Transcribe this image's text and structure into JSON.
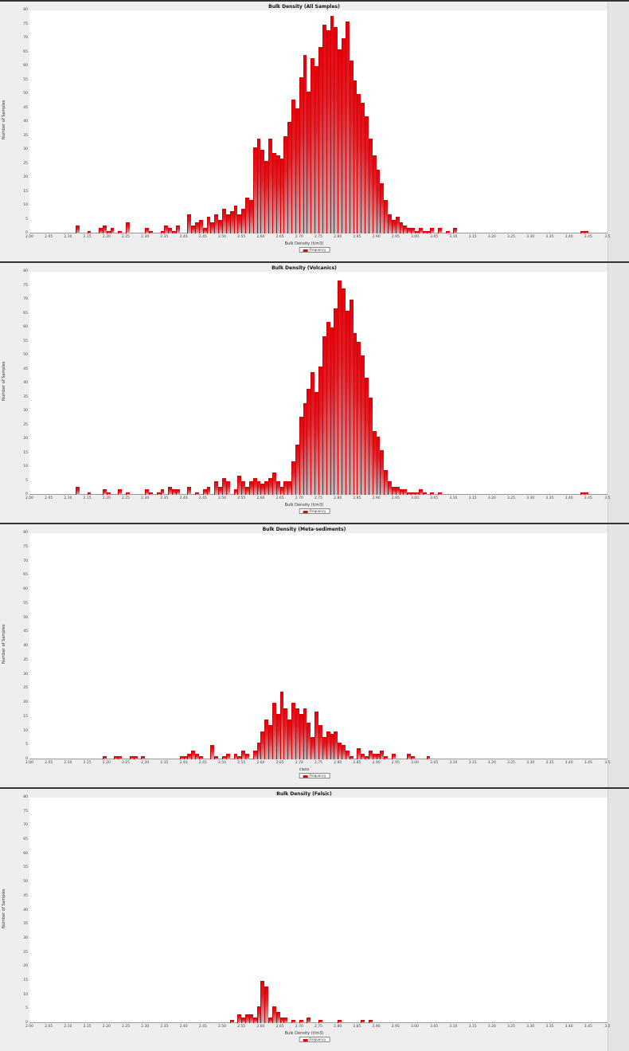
{
  "x_ticks": [
    "2.00",
    "2.05",
    "2.10",
    "2.15",
    "2.20",
    "2.25",
    "2.30",
    "2.35",
    "2.40",
    "2.45",
    "2.50",
    "2.55",
    "2.60",
    "2.65",
    "2.70",
    "2.75",
    "2.80",
    "2.85",
    "2.90",
    "2.95",
    "3.00",
    "3.05",
    "3.10",
    "3.15",
    "3.20",
    "3.25",
    "3.30",
    "3.35",
    "3.40",
    "3.45",
    "3.5"
  ],
  "y_ticks": [
    "0",
    "5",
    "10",
    "15",
    "20",
    "25",
    "30",
    "35",
    "40",
    "45",
    "50",
    "55",
    "60",
    "65",
    "70",
    "75",
    "80"
  ],
  "legend_label": "Frequency",
  "chart_data": [
    {
      "type": "bar",
      "title": "Bulk Density (All Samples)",
      "xlabel": "Bulk Density (t/m3)",
      "ylabel": "Number of Samples",
      "xlim": [
        2.0,
        3.5
      ],
      "ylim": [
        0,
        80
      ],
      "bin_width": 0.01,
      "legend": [
        "Frequency"
      ],
      "x": [
        2.12,
        2.15,
        2.18,
        2.19,
        2.2,
        2.21,
        2.23,
        2.25,
        2.3,
        2.31,
        2.34,
        2.35,
        2.36,
        2.37,
        2.38,
        2.41,
        2.42,
        2.43,
        2.44,
        2.45,
        2.46,
        2.47,
        2.48,
        2.49,
        2.5,
        2.51,
        2.52,
        2.53,
        2.54,
        2.55,
        2.56,
        2.57,
        2.58,
        2.59,
        2.6,
        2.61,
        2.62,
        2.63,
        2.64,
        2.65,
        2.66,
        2.67,
        2.68,
        2.69,
        2.7,
        2.71,
        2.72,
        2.73,
        2.74,
        2.75,
        2.76,
        2.77,
        2.78,
        2.79,
        2.8,
        2.81,
        2.82,
        2.83,
        2.84,
        2.85,
        2.86,
        2.87,
        2.88,
        2.89,
        2.9,
        2.91,
        2.92,
        2.93,
        2.94,
        2.95,
        2.96,
        2.97,
        2.98,
        2.99,
        3.0,
        3.01,
        3.02,
        3.03,
        3.04,
        3.06,
        3.08,
        3.1,
        3.43,
        3.44
      ],
      "values": [
        3,
        1,
        2,
        3,
        1,
        2,
        1,
        4,
        2,
        1,
        1,
        3,
        2,
        1,
        3,
        7,
        3,
        4,
        5,
        2,
        6,
        4,
        7,
        5,
        9,
        7,
        8,
        10,
        7,
        9,
        13,
        12,
        31,
        34,
        30,
        26,
        34,
        29,
        28,
        27,
        35,
        40,
        48,
        45,
        56,
        64,
        51,
        63,
        60,
        67,
        75,
        73,
        78,
        74,
        66,
        70,
        76,
        62,
        55,
        50,
        47,
        42,
        34,
        28,
        23,
        18,
        12,
        7,
        5,
        6,
        4,
        3,
        2,
        2,
        1,
        2,
        1,
        1,
        2,
        2,
        1,
        2,
        1,
        1
      ]
    },
    {
      "type": "bar",
      "title": "Bulk Density (Volcanics)",
      "xlabel": "Bulk Density (t/m3)",
      "ylabel": "Number of Samples",
      "xlim": [
        2.0,
        3.5
      ],
      "ylim": [
        0,
        80
      ],
      "bin_width": 0.01,
      "legend": [
        "Frequency"
      ],
      "x": [
        2.12,
        2.15,
        2.19,
        2.2,
        2.23,
        2.25,
        2.3,
        2.31,
        2.33,
        2.34,
        2.36,
        2.37,
        2.38,
        2.41,
        2.43,
        2.45,
        2.46,
        2.48,
        2.49,
        2.5,
        2.51,
        2.53,
        2.54,
        2.55,
        2.56,
        2.57,
        2.58,
        2.59,
        2.6,
        2.61,
        2.62,
        2.63,
        2.64,
        2.65,
        2.66,
        2.67,
        2.68,
        2.69,
        2.7,
        2.71,
        2.72,
        2.73,
        2.74,
        2.75,
        2.76,
        2.77,
        2.78,
        2.79,
        2.8,
        2.81,
        2.82,
        2.83,
        2.84,
        2.85,
        2.86,
        2.87,
        2.88,
        2.89,
        2.9,
        2.91,
        2.92,
        2.93,
        2.94,
        2.95,
        2.96,
        2.97,
        2.98,
        2.99,
        3.0,
        3.01,
        3.02,
        3.04,
        3.06,
        3.43,
        3.44
      ],
      "values": [
        3,
        1,
        2,
        1,
        2,
        1,
        2,
        1,
        1,
        2,
        3,
        2,
        2,
        3,
        1,
        2,
        3,
        5,
        3,
        6,
        5,
        2,
        7,
        5,
        3,
        5,
        6,
        5,
        4,
        5,
        6,
        8,
        5,
        3,
        5,
        5,
        12,
        18,
        28,
        33,
        38,
        44,
        37,
        46,
        57,
        62,
        60,
        67,
        77,
        74,
        66,
        70,
        58,
        55,
        50,
        42,
        35,
        23,
        21,
        16,
        9,
        5,
        3,
        3,
        2,
        2,
        1,
        1,
        1,
        2,
        1,
        1,
        1,
        1,
        1
      ]
    },
    {
      "type": "bar",
      "title": "Bulk Density (Meta-sediments)",
      "xlabel": "class",
      "ylabel": "Number of Samples",
      "xlim": [
        2.0,
        3.5
      ],
      "ylim": [
        0,
        80
      ],
      "bin_width": 0.01,
      "legend": [
        "Frequency"
      ],
      "x": [
        2.19,
        2.22,
        2.23,
        2.26,
        2.27,
        2.29,
        2.39,
        2.4,
        2.41,
        2.42,
        2.43,
        2.44,
        2.47,
        2.48,
        2.5,
        2.51,
        2.53,
        2.54,
        2.55,
        2.56,
        2.58,
        2.59,
        2.6,
        2.61,
        2.62,
        2.63,
        2.64,
        2.65,
        2.66,
        2.67,
        2.68,
        2.69,
        2.7,
        2.71,
        2.72,
        2.73,
        2.74,
        2.75,
        2.76,
        2.77,
        2.78,
        2.79,
        2.8,
        2.81,
        2.82,
        2.83,
        2.85,
        2.86,
        2.87,
        2.88,
        2.89,
        2.9,
        2.91,
        2.92,
        2.94,
        2.98,
        2.99,
        3.03
      ],
      "values": [
        1,
        1,
        1,
        1,
        1,
        1,
        1,
        1,
        2,
        3,
        2,
        1,
        5,
        1,
        1,
        2,
        2,
        1,
        3,
        2,
        3,
        6,
        10,
        14,
        12,
        20,
        16,
        24,
        18,
        14,
        20,
        18,
        16,
        18,
        13,
        8,
        17,
        12,
        8,
        10,
        9,
        10,
        6,
        5,
        3,
        1,
        4,
        2,
        1,
        3,
        2,
        2,
        3,
        1,
        2,
        2,
        1,
        1
      ]
    },
    {
      "type": "bar",
      "title": "Bulk Density (Felsic)",
      "xlabel": "Bulk Density (t/m3)",
      "ylabel": "Number of Samples",
      "xlim": [
        2.0,
        3.5
      ],
      "ylim": [
        0,
        80
      ],
      "bin_width": 0.01,
      "legend": [
        "Frequency"
      ],
      "x": [
        2.52,
        2.54,
        2.55,
        2.56,
        2.57,
        2.58,
        2.59,
        2.6,
        2.61,
        2.62,
        2.63,
        2.64,
        2.65,
        2.66,
        2.68,
        2.7,
        2.72,
        2.75,
        2.8,
        2.86,
        2.88
      ],
      "values": [
        1,
        3,
        2,
        3,
        3,
        2,
        6,
        15,
        13,
        2,
        6,
        4,
        2,
        2,
        1,
        1,
        2,
        1,
        1,
        1,
        1
      ]
    }
  ]
}
